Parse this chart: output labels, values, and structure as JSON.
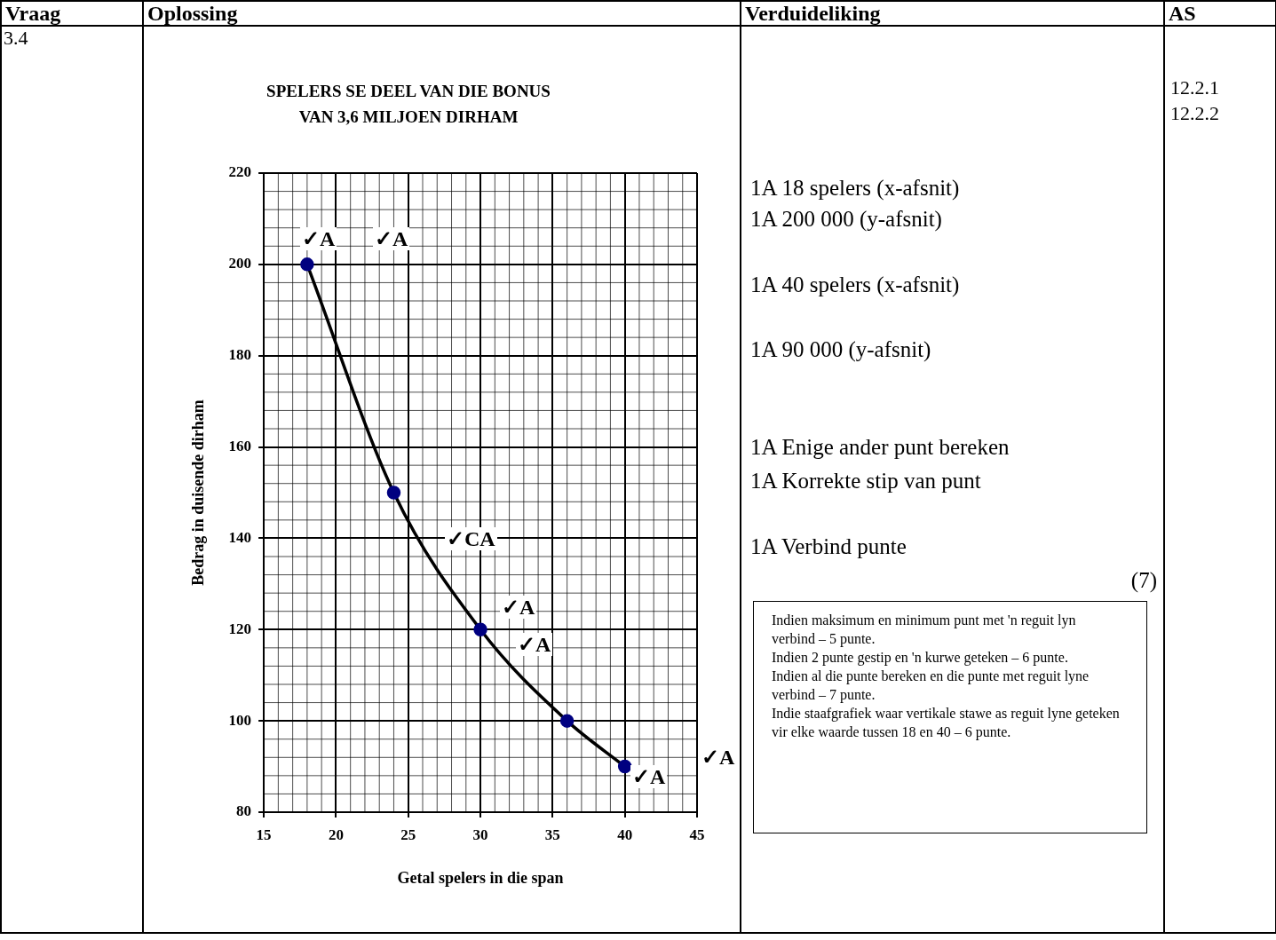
{
  "chart_data": {
    "type": "line",
    "title": "SPELERS SE DEEL VAN DIE BONUS\nVAN 3,6 MILJOEN DIRHAM",
    "xlabel": "Getal spelers in die span",
    "ylabel": "Bedrag in duisende dirham",
    "x": [
      18,
      24,
      30,
      36,
      40
    ],
    "series": [
      {
        "color": "#000000",
        "colors": [
          "#000080",
          "#000080",
          "#000080",
          "#000080",
          "#000080"
        ],
        "values": [
          200,
          150,
          120,
          100,
          90
        ]
      }
    ],
    "xlim": [
      15,
      45
    ],
    "xticks": [
      15,
      20,
      25,
      30,
      35,
      40,
      45
    ],
    "ylim": [
      80,
      220
    ],
    "yticks": [
      80,
      100,
      120,
      140,
      160,
      180,
      200,
      220
    ],
    "grid": true,
    "legend": false,
    "marker": "circle",
    "line_style": "solid",
    "annotations": [
      "Vraag",
      "Oplossing",
      "Verduideliking",
      "AS",
      "3.4",
      "12.2.1",
      "12.2.2",
      "1A 18 spelers (x-afsnit)",
      "1A 200 000 (y-afsnit)",
      "1A 40 spelers (x-afsnit)",
      "1A 90 000 (y-afsnit)",
      "1A Enige ander punt bereken",
      "1A Korrekte stip van punt",
      "1A Verbind punte",
      "(7)",
      "Indien maksimum en minimum punt met 'n reguit lyn verbind – 5 punte.",
      "Indien 2 punte gestip en 'n kurwe geteken – 6 punte.",
      "Indien al die punte bereken en die punte met reguit lyne verbind – 7 punte.",
      "Indie staafgrafiek waar vertikale stawe as reguit lyne geteken vir elke waarde tussen 18 en 40 – 6 punte.",
      "✓A",
      "✓A",
      "✓A",
      "✓CA",
      "✓A",
      "✓A",
      "✓A"
    ]
  }
}
